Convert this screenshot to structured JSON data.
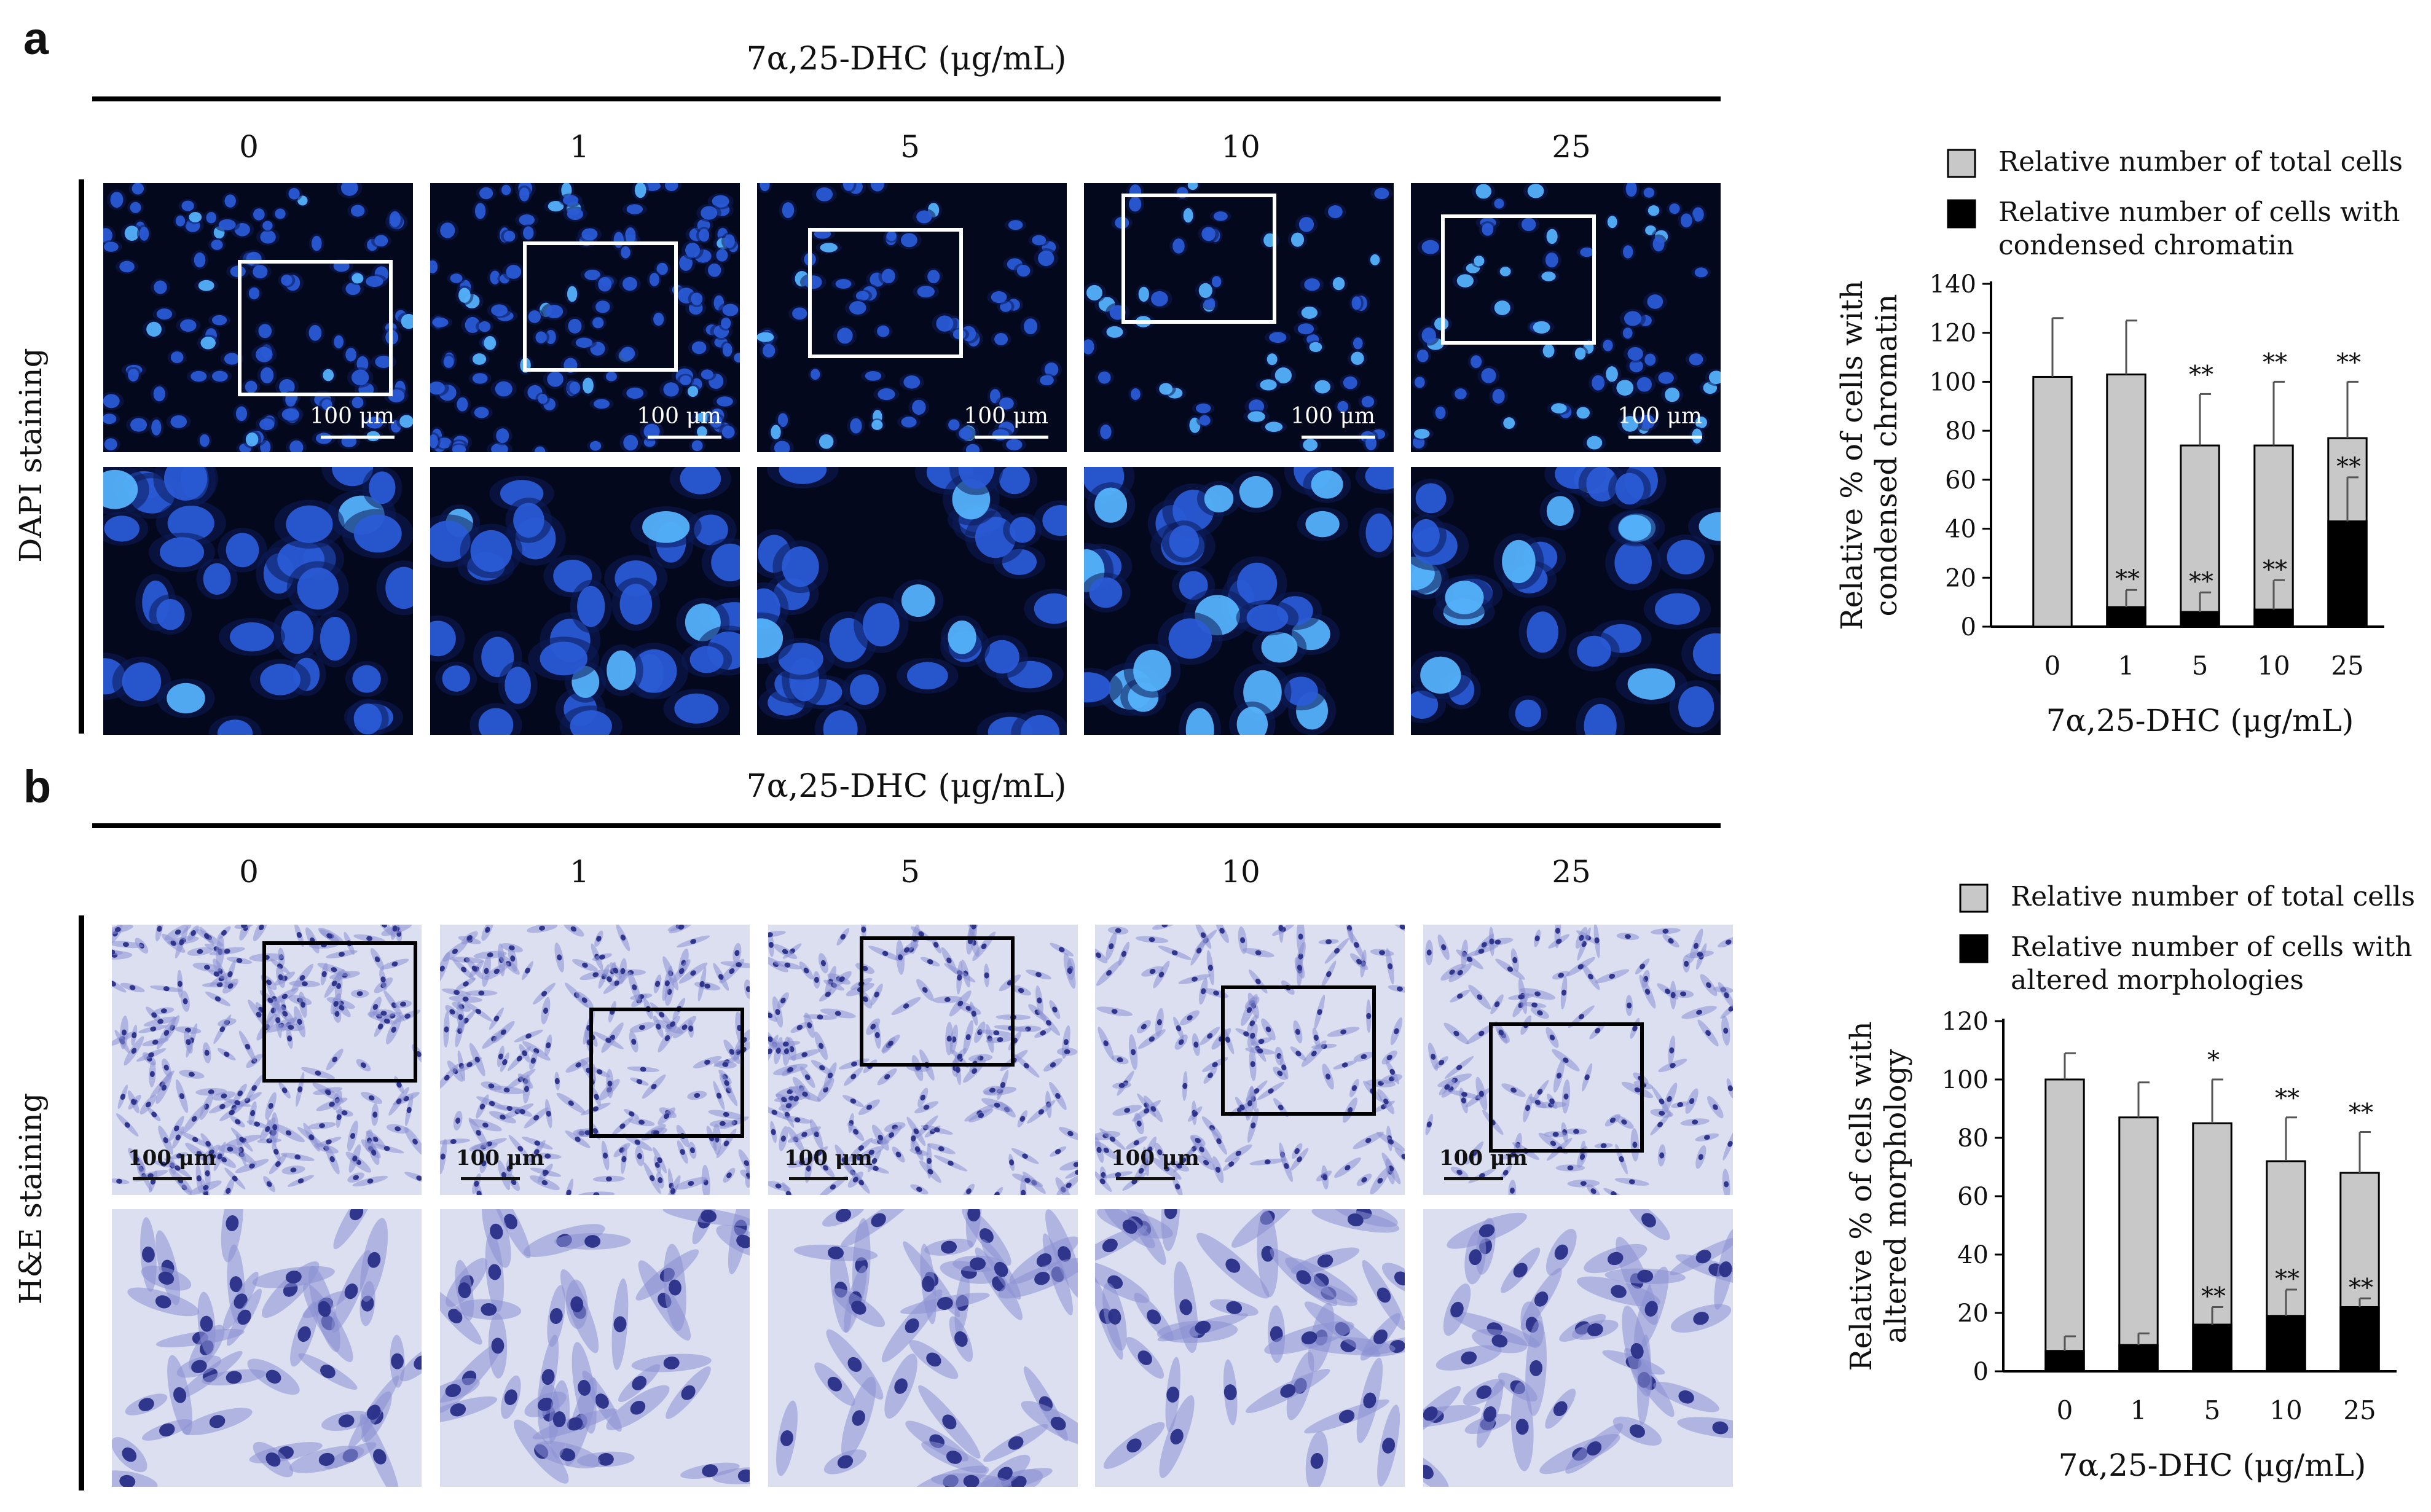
{
  "panel_a": {
    "letter": "a",
    "treatment_header": "7α,25-DHC (μg/mL)",
    "doses": [
      "0",
      "1",
      "5",
      "10",
      "25"
    ],
    "row_label": "DAPI staining",
    "scale_bar_label": "100 μm",
    "colors": {
      "background": "#04081c",
      "nucleus": "#2a5bd8",
      "nucleus_bright": "#57b6ff",
      "inset_box": "#ffffff"
    }
  },
  "panel_b": {
    "letter": "b",
    "treatment_header": "7α,25-DHC (μg/mL)",
    "doses": [
      "0",
      "1",
      "5",
      "10",
      "25"
    ],
    "row_label": "H&E staining",
    "scale_bar_label": "100 μm",
    "colors": {
      "background": "#dcdff0",
      "cell": "#8b8fd4",
      "nucleus": "#2a2f88",
      "inset_box": "#000000"
    }
  },
  "chart_data": [
    {
      "type": "bar",
      "categories": [
        "0",
        "1",
        "5",
        "10",
        "25"
      ],
      "series": [
        {
          "name": "Relative number of total cells",
          "values": [
            102,
            103,
            74,
            74,
            77
          ],
          "error": [
            24,
            22,
            21,
            26,
            23
          ],
          "color": "#c8c8c8",
          "annotations": [
            "",
            "",
            "**",
            "**",
            "**"
          ]
        },
        {
          "name": "Relative number of cells with condensed chromatin",
          "values": [
            0,
            8,
            6,
            7,
            43
          ],
          "error": [
            0,
            7,
            8,
            12,
            18
          ],
          "color": "#000000",
          "annotations": [
            "",
            "**",
            "**",
            "**",
            "**"
          ]
        }
      ],
      "xlabel": "7α,25-DHC (μg/mL)",
      "ylabel_lines": [
        "Relative % of cells with",
        "condensed chromatin"
      ],
      "ylim": [
        0,
        140
      ],
      "yticks": [
        "0",
        "20",
        "40",
        "60",
        "80",
        "100",
        "120",
        "140"
      ],
      "grid": false,
      "legend": "top"
    },
    {
      "type": "bar",
      "categories": [
        "0",
        "1",
        "5",
        "10",
        "25"
      ],
      "series": [
        {
          "name": "Relative number of total cells",
          "values": [
            100,
            87,
            85,
            72,
            68
          ],
          "error": [
            9,
            12,
            15,
            15,
            14
          ],
          "color": "#c8c8c8",
          "annotations": [
            "",
            "",
            "*",
            "**",
            "**"
          ]
        },
        {
          "name": "Relative number of cells with altered morphologies",
          "values": [
            7,
            9,
            16,
            19,
            22
          ],
          "error": [
            5,
            4,
            6,
            9,
            3
          ],
          "color": "#000000",
          "annotations": [
            "",
            "",
            "**",
            "**",
            "**"
          ]
        }
      ],
      "xlabel": "7α,25-DHC (μg/mL)",
      "ylabel_lines": [
        "Relative % of cells with",
        "altered morphology"
      ],
      "ylim": [
        0,
        120
      ],
      "yticks": [
        "0",
        "20",
        "40",
        "60",
        "80",
        "100",
        "120"
      ],
      "grid": false,
      "legend": "top"
    }
  ]
}
